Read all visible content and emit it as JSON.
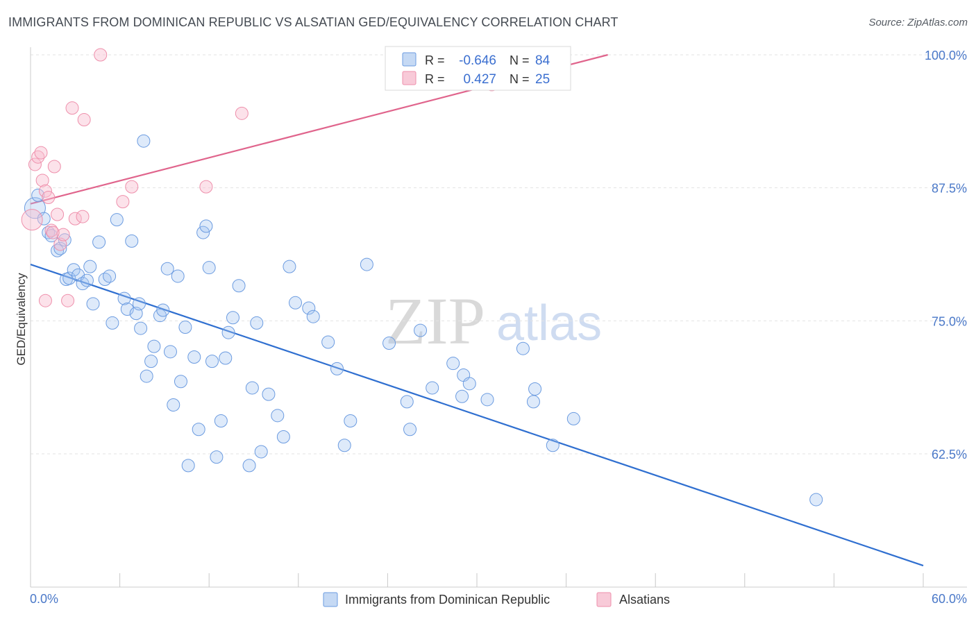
{
  "header": {
    "title": "IMMIGRANTS FROM DOMINICAN REPUBLIC VS ALSATIAN GED/EQUIVALENCY CORRELATION CHART",
    "source": "Source: ZipAtlas.com"
  },
  "watermark": {
    "zip": "ZIP",
    "atlas": "atlas"
  },
  "legend_top": {
    "r_label": "R =",
    "n_label": "N =",
    "rows": [
      {
        "r": "-0.646",
        "n": "84"
      },
      {
        "r": "0.427",
        "n": "25"
      }
    ]
  },
  "chart_data": {
    "type": "scatter",
    "title": "IMMIGRANTS FROM DOMINICAN REPUBLIC VS ALSATIAN GED/EQUIVALENCY CORRELATION CHART",
    "xlabel": "",
    "ylabel": "GED/Equivalency",
    "xlim": [
      0,
      60
    ],
    "ylim": [
      50,
      100
    ],
    "x_tick_labels": [
      "0.0%",
      "60.0%"
    ],
    "y_ticks": [
      62.5,
      75.0,
      87.5,
      100.0
    ],
    "y_tick_labels": [
      "62.5%",
      "75.0%",
      "87.5%",
      "100.0%"
    ],
    "grid": true,
    "legend_position": "bottom",
    "colors": {
      "blue": "#5b8fd6",
      "pink": "#ee8fab",
      "blue_line": "#2f6fd0",
      "pink_line": "#e0648c"
    },
    "series": [
      {
        "name": "Immigrants from Dominican Republic",
        "color": "#5b8fd6",
        "trend": {
          "x": [
            0,
            60
          ],
          "y": [
            80.3,
            52.0
          ]
        },
        "points": [
          [
            0.3,
            85.6
          ],
          [
            0.5,
            86.8
          ],
          [
            0.9,
            84.6
          ],
          [
            1.2,
            83.3
          ],
          [
            1.4,
            83.0
          ],
          [
            1.8,
            81.6
          ],
          [
            2.0,
            81.8
          ],
          [
            2.3,
            82.6
          ],
          [
            2.4,
            78.9
          ],
          [
            2.6,
            79.0
          ],
          [
            2.9,
            79.8
          ],
          [
            3.2,
            79.3
          ],
          [
            3.5,
            78.5
          ],
          [
            3.8,
            78.8
          ],
          [
            4.0,
            80.1
          ],
          [
            4.2,
            76.6
          ],
          [
            4.6,
            82.4
          ],
          [
            5.0,
            78.9
          ],
          [
            5.3,
            79.2
          ],
          [
            5.5,
            74.8
          ],
          [
            5.8,
            84.5
          ],
          [
            6.3,
            77.1
          ],
          [
            6.5,
            76.1
          ],
          [
            6.8,
            82.5
          ],
          [
            7.1,
            75.7
          ],
          [
            7.4,
            74.3
          ],
          [
            7.6,
            91.9
          ],
          [
            7.8,
            69.8
          ],
          [
            8.1,
            71.2
          ],
          [
            8.3,
            72.6
          ],
          [
            8.7,
            75.5
          ],
          [
            8.9,
            76.0
          ],
          [
            9.2,
            79.9
          ],
          [
            9.4,
            72.1
          ],
          [
            9.6,
            67.1
          ],
          [
            9.9,
            79.2
          ],
          [
            10.1,
            69.3
          ],
          [
            10.4,
            74.4
          ],
          [
            10.6,
            61.4
          ],
          [
            11.0,
            71.6
          ],
          [
            11.3,
            64.8
          ],
          [
            11.6,
            83.3
          ],
          [
            11.8,
            83.9
          ],
          [
            12.0,
            80.0
          ],
          [
            12.2,
            71.2
          ],
          [
            12.5,
            62.2
          ],
          [
            12.8,
            65.6
          ],
          [
            13.1,
            71.5
          ],
          [
            13.3,
            73.9
          ],
          [
            13.6,
            75.3
          ],
          [
            14.0,
            78.3
          ],
          [
            14.7,
            61.4
          ],
          [
            14.9,
            68.7
          ],
          [
            15.2,
            74.8
          ],
          [
            15.5,
            62.7
          ],
          [
            16.0,
            68.1
          ],
          [
            16.6,
            66.1
          ],
          [
            17.0,
            64.1
          ],
          [
            17.4,
            80.1
          ],
          [
            17.8,
            76.7
          ],
          [
            18.7,
            76.2
          ],
          [
            19.0,
            75.4
          ],
          [
            20.0,
            73.0
          ],
          [
            20.6,
            70.5
          ],
          [
            21.1,
            63.3
          ],
          [
            21.5,
            65.6
          ],
          [
            22.6,
            80.3
          ],
          [
            24.1,
            72.9
          ],
          [
            25.3,
            67.4
          ],
          [
            25.5,
            64.8
          ],
          [
            26.2,
            74.1
          ],
          [
            27.0,
            68.7
          ],
          [
            28.4,
            71.0
          ],
          [
            29.0,
            67.9
          ],
          [
            29.1,
            69.9
          ],
          [
            29.5,
            69.1
          ],
          [
            30.7,
            67.6
          ],
          [
            33.1,
            72.4
          ],
          [
            33.8,
            67.4
          ],
          [
            33.9,
            68.6
          ],
          [
            35.1,
            63.3
          ],
          [
            36.5,
            65.8
          ],
          [
            52.8,
            58.2
          ],
          [
            7.3,
            76.6
          ]
        ]
      },
      {
        "name": "Alsatians",
        "color": "#ee8fab",
        "trend": {
          "x": [
            0,
            38.8
          ],
          "y": [
            86.0,
            100.0
          ]
        },
        "points": [
          [
            0.1,
            84.5
          ],
          [
            0.3,
            89.7
          ],
          [
            0.5,
            90.4
          ],
          [
            0.7,
            90.8
          ],
          [
            0.8,
            88.2
          ],
          [
            1.0,
            87.2
          ],
          [
            1.2,
            86.6
          ],
          [
            1.0,
            76.9
          ],
          [
            1.4,
            83.5
          ],
          [
            1.6,
            89.5
          ],
          [
            1.8,
            85.0
          ],
          [
            2.0,
            82.2
          ],
          [
            2.2,
            83.1
          ],
          [
            2.5,
            76.9
          ],
          [
            2.8,
            95.0
          ],
          [
            3.0,
            84.6
          ],
          [
            3.5,
            84.8
          ],
          [
            3.6,
            93.9
          ],
          [
            4.7,
            100.0
          ],
          [
            6.2,
            86.2
          ],
          [
            6.8,
            87.6
          ],
          [
            11.8,
            87.6
          ],
          [
            14.2,
            94.5
          ],
          [
            31.0,
            97.2
          ],
          [
            1.5,
            83.3
          ]
        ]
      }
    ]
  },
  "legend_bottom": {
    "items": [
      "Immigrants from Dominican Republic",
      "Alsatians"
    ]
  }
}
